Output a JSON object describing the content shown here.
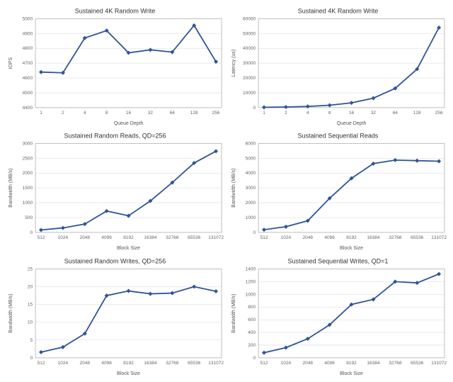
{
  "global": {
    "background_color": "#ffffff",
    "line_color": "#2f5597",
    "grid_color": "#d8d8d8",
    "border_color": "#bfbfbf",
    "title_font_size": 9,
    "tick_font_size": 6.5,
    "axis_label_font_size": 7,
    "marker_style": "diamond",
    "marker_size": 3.0,
    "line_width": 1.8
  },
  "charts": [
    {
      "id": "c0",
      "title": "Sustained 4K Random Write",
      "xlabel": "Queue Depth",
      "ylabel": "IOPS",
      "x_categories": [
        "1",
        "2",
        "4",
        "8",
        "16",
        "32",
        "64",
        "128",
        "256"
      ],
      "y_ticks": [
        4400,
        4500,
        4600,
        4700,
        4800,
        4900,
        5000
      ],
      "ylim": [
        4400,
        5000
      ],
      "values": [
        4640,
        4635,
        4870,
        4920,
        4770,
        4790,
        4775,
        4955,
        4710
      ]
    },
    {
      "id": "c1",
      "title": "Sustained 4K Random Write",
      "xlabel": "Queue Depth",
      "ylabel": "Latency (us)",
      "x_categories": [
        "1",
        "2",
        "4",
        "8",
        "16",
        "32",
        "64",
        "128",
        "256"
      ],
      "y_ticks": [
        0,
        10000,
        20000,
        30000,
        40000,
        50000,
        60000
      ],
      "ylim": [
        0,
        60000
      ],
      "values": [
        200,
        400,
        800,
        1600,
        3200,
        6400,
        13000,
        26000,
        54000
      ]
    },
    {
      "id": "c2",
      "title": "Sustained Random Reads, QD=256",
      "xlabel": "Block Size",
      "ylabel": "Bandwidth (MB/s)",
      "x_categories": [
        "512",
        "1024",
        "2048",
        "4096",
        "8192",
        "16384",
        "32768",
        "65536",
        "131072"
      ],
      "y_ticks": [
        0,
        500,
        1000,
        1500,
        2000,
        2500,
        3000
      ],
      "ylim": [
        0,
        3000
      ],
      "values": [
        80,
        150,
        280,
        720,
        560,
        1060,
        1680,
        2340,
        2740
      ]
    },
    {
      "id": "c3",
      "title": "Sustained Sequential Reads",
      "xlabel": "Block Size",
      "ylabel": "Bandwidth (MB/s)",
      "x_categories": [
        "512",
        "1024",
        "2048",
        "4096",
        "8192",
        "16384",
        "32768",
        "65536",
        "131072"
      ],
      "y_ticks": [
        0,
        1000,
        2000,
        3000,
        4000,
        5000,
        6000
      ],
      "ylim": [
        0,
        6000
      ],
      "values": [
        180,
        380,
        780,
        2300,
        3650,
        4640,
        4880,
        4840,
        4800
      ]
    },
    {
      "id": "c4",
      "title": "Sustained Random Writes, QD=256",
      "xlabel": "Block Size",
      "ylabel": "Bandwidth (MB/s)",
      "x_categories": [
        "512",
        "1024",
        "2048",
        "4096",
        "8192",
        "16384",
        "32768",
        "65536",
        "131072"
      ],
      "y_ticks": [
        0,
        5,
        10,
        15,
        20,
        25
      ],
      "ylim": [
        0,
        25
      ],
      "values": [
        1.6,
        3.0,
        6.8,
        17.5,
        18.8,
        18.0,
        18.2,
        20.0,
        18.7
      ]
    },
    {
      "id": "c5",
      "title": "Sustained Sequential Writes, QD=1",
      "xlabel": "Block Size",
      "ylabel": "Bandwidth (MB/s)",
      "x_categories": [
        "512",
        "1024",
        "2048",
        "4096",
        "8192",
        "16384",
        "32768",
        "65536",
        "131072"
      ],
      "y_ticks": [
        0,
        200,
        400,
        600,
        800,
        1000,
        1200,
        1400
      ],
      "ylim": [
        0,
        1400
      ],
      "values": [
        80,
        160,
        300,
        520,
        840,
        920,
        1200,
        1180,
        1320
      ]
    }
  ]
}
